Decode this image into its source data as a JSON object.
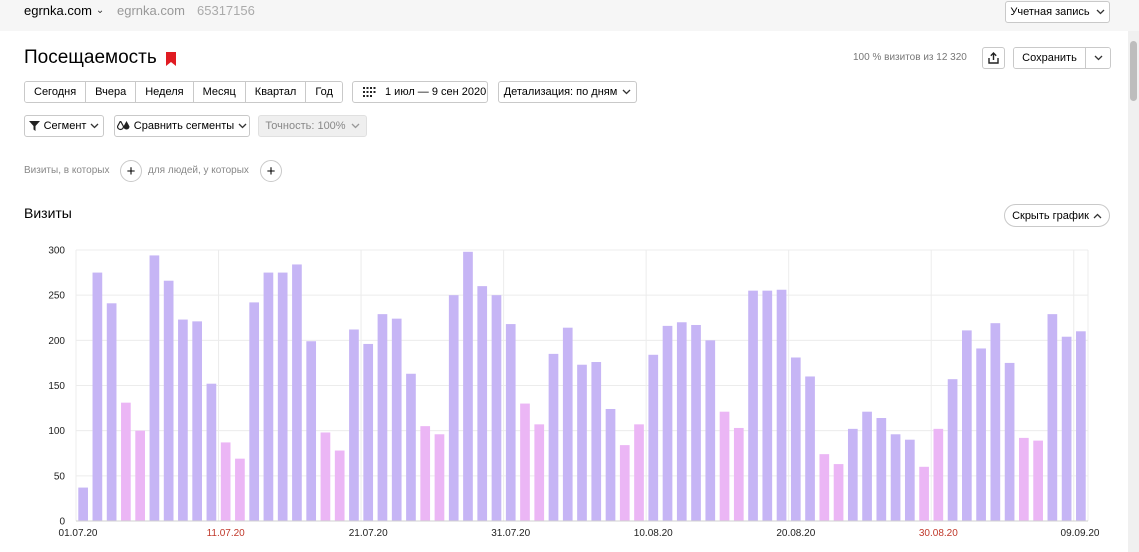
{
  "topbar": {
    "counter": "egrnka.com",
    "counter_name": "egrnka.com",
    "counter_id": "65317156",
    "account_label": "Учетная запись"
  },
  "header": {
    "title": "Посещаемость",
    "sample_info": "100 % визитов из 12 320",
    "save_label": "Сохранить"
  },
  "periods": [
    "Сегодня",
    "Вчера",
    "Неделя",
    "Месяц",
    "Квартал",
    "Год"
  ],
  "date_range": "1 июл — 9 сен 2020",
  "detail_label": "Детализация: по дням",
  "segment_label": "Сегмент",
  "compare_label": "Сравнить сегменты",
  "accuracy_label": "Точность: 100%",
  "conditions": {
    "visits_label": "Визиты, в которых",
    "people_label": "для людей, у которых"
  },
  "chart_section": {
    "title": "Визиты",
    "hide_label": "Скрыть график"
  },
  "colors": {
    "weekday_bar": "#c6b5f5",
    "weekend_bar": "#ebb6f5",
    "weekend_label": "#c0392b",
    "bookmark": "#e01b22"
  },
  "chart_data": {
    "type": "bar",
    "title": "Визиты",
    "xlabel": "",
    "ylabel": "",
    "ylim": [
      0,
      300
    ],
    "yticks": [
      0,
      50,
      100,
      150,
      200,
      250,
      300
    ],
    "grid": true,
    "x_tick_labels": [
      {
        "index": 0,
        "label": "01.07.20",
        "weekend": false
      },
      {
        "index": 10,
        "label": "11.07.20",
        "weekend": true
      },
      {
        "index": 20,
        "label": "21.07.20",
        "weekend": false
      },
      {
        "index": 30,
        "label": "31.07.20",
        "weekend": false
      },
      {
        "index": 40,
        "label": "10.08.20",
        "weekend": false
      },
      {
        "index": 50,
        "label": "20.08.20",
        "weekend": false
      },
      {
        "index": 60,
        "label": "30.08.20",
        "weekend": true
      },
      {
        "index": 70,
        "label": "09.09.20",
        "weekend": false
      }
    ],
    "values": [
      37,
      275,
      241,
      131,
      100,
      294,
      266,
      223,
      221,
      152,
      87,
      69,
      242,
      275,
      275,
      284,
      199,
      98,
      78,
      212,
      196,
      229,
      224,
      163,
      105,
      96,
      250,
      298,
      260,
      250,
      218,
      130,
      107,
      185,
      214,
      173,
      176,
      124,
      84,
      107,
      184,
      216,
      220,
      217,
      200,
      121,
      103,
      255,
      255,
      256,
      181,
      160,
      74,
      63,
      102,
      121,
      114,
      96,
      90,
      60,
      102,
      157,
      211,
      191,
      219,
      175,
      92,
      89,
      229,
      204,
      210
    ],
    "weekend": [
      false,
      false,
      false,
      true,
      true,
      false,
      false,
      false,
      false,
      false,
      true,
      true,
      false,
      false,
      false,
      false,
      false,
      true,
      true,
      false,
      false,
      false,
      false,
      false,
      true,
      true,
      false,
      false,
      false,
      false,
      false,
      true,
      true,
      false,
      false,
      false,
      false,
      false,
      true,
      true,
      false,
      false,
      false,
      false,
      false,
      true,
      true,
      false,
      false,
      false,
      false,
      false,
      true,
      true,
      false,
      false,
      false,
      false,
      false,
      true,
      true,
      false,
      false,
      false,
      false,
      false,
      true,
      true,
      false,
      false,
      false
    ]
  }
}
